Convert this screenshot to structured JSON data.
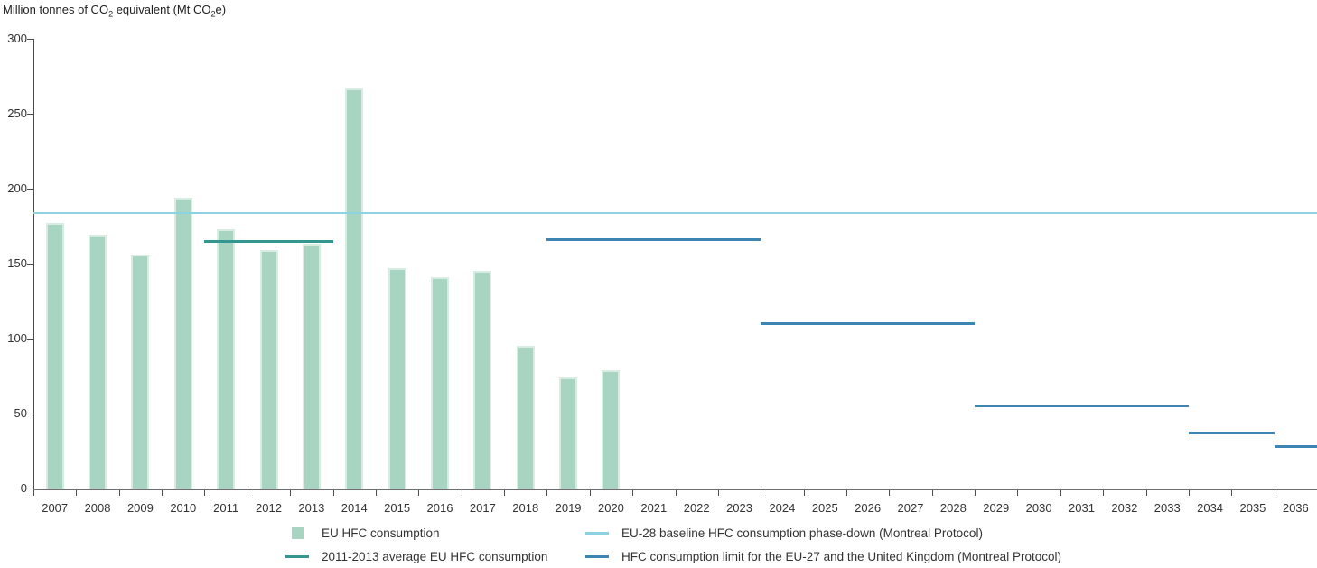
{
  "title": {
    "part1": "Million tonnes of CO",
    "sub1": "2",
    "part2": " equivalent (Mt CO",
    "sub2": "2",
    "part3": "e)"
  },
  "chart_data": {
    "type": "bar",
    "title": "Million tonnes of CO2 equivalent (Mt CO2e)",
    "xlabel": "",
    "ylabel": "Million tonnes of CO2 equivalent (Mt CO2e)",
    "ylim": [
      0,
      300
    ],
    "yticks": [
      0,
      50,
      100,
      150,
      200,
      250,
      300
    ],
    "grid": false,
    "legend_position": "bottom",
    "categories": [
      "2007",
      "2008",
      "2009",
      "2010",
      "2011",
      "2012",
      "2013",
      "2014",
      "2015",
      "2016",
      "2017",
      "2018",
      "2019",
      "2020",
      "2021",
      "2022",
      "2023",
      "2024",
      "2025",
      "2026",
      "2027",
      "2028",
      "2029",
      "2030",
      "2031",
      "2032",
      "2033",
      "2034",
      "2035",
      "2036"
    ],
    "series": [
      {
        "name": "EU HFC consumption",
        "slug": "eu-hfc-consumption",
        "type": "bar",
        "color": "#a7d5c2",
        "border_color": "#d8ece1",
        "values": [
          177,
          169,
          156,
          194,
          173,
          159,
          163,
          267,
          147,
          141,
          145,
          95,
          74,
          79,
          null,
          null,
          null,
          null,
          null,
          null,
          null,
          null,
          null,
          null,
          null,
          null,
          null,
          null,
          null,
          null
        ]
      },
      {
        "name": "EU-28 baseline HFC consumption phase-down (Montreal Protocol)",
        "slug": "eu28-baseline-phase-down",
        "type": "line",
        "color": "#8dd2e0",
        "thickness": 2,
        "segments": [
          {
            "from": "2007",
            "to": "2036",
            "value": 184
          }
        ]
      },
      {
        "name": "2011-2013 average EU HFC consumption",
        "slug": "average-2011-2013",
        "type": "line",
        "color": "#339690",
        "thickness": 3,
        "segments": [
          {
            "from": "2011",
            "to": "2013",
            "value": 165
          }
        ]
      },
      {
        "name": "HFC consumption limit for the EU-27 and the United Kingdom (Montreal Protocol)",
        "slug": "hfc-consumption-limit",
        "type": "line",
        "color": "#3d86b4",
        "thickness": 3,
        "segments": [
          {
            "from": "2019",
            "to": "2023",
            "value": 166
          },
          {
            "from": "2024",
            "to": "2028",
            "value": 110
          },
          {
            "from": "2029",
            "to": "2033",
            "value": 55
          },
          {
            "from": "2034",
            "to": "2035",
            "value": 37
          },
          {
            "from": "2036",
            "to": "2036",
            "value": 28
          }
        ]
      }
    ]
  },
  "legend": {
    "items": [
      {
        "label": "EU HFC consumption",
        "marker": "square",
        "color": "#a7d5c2"
      },
      {
        "label": "2011-2013 average EU HFC consumption",
        "marker": "line",
        "color": "#339690"
      },
      {
        "label": "EU-28 baseline HFC consumption phase-down (Montreal Protocol)",
        "marker": "line",
        "color": "#8dd2e0"
      },
      {
        "label": "HFC consumption limit for the EU-27 and the United Kingdom (Montreal Protocol)",
        "marker": "line",
        "color": "#3d86b4"
      }
    ]
  }
}
